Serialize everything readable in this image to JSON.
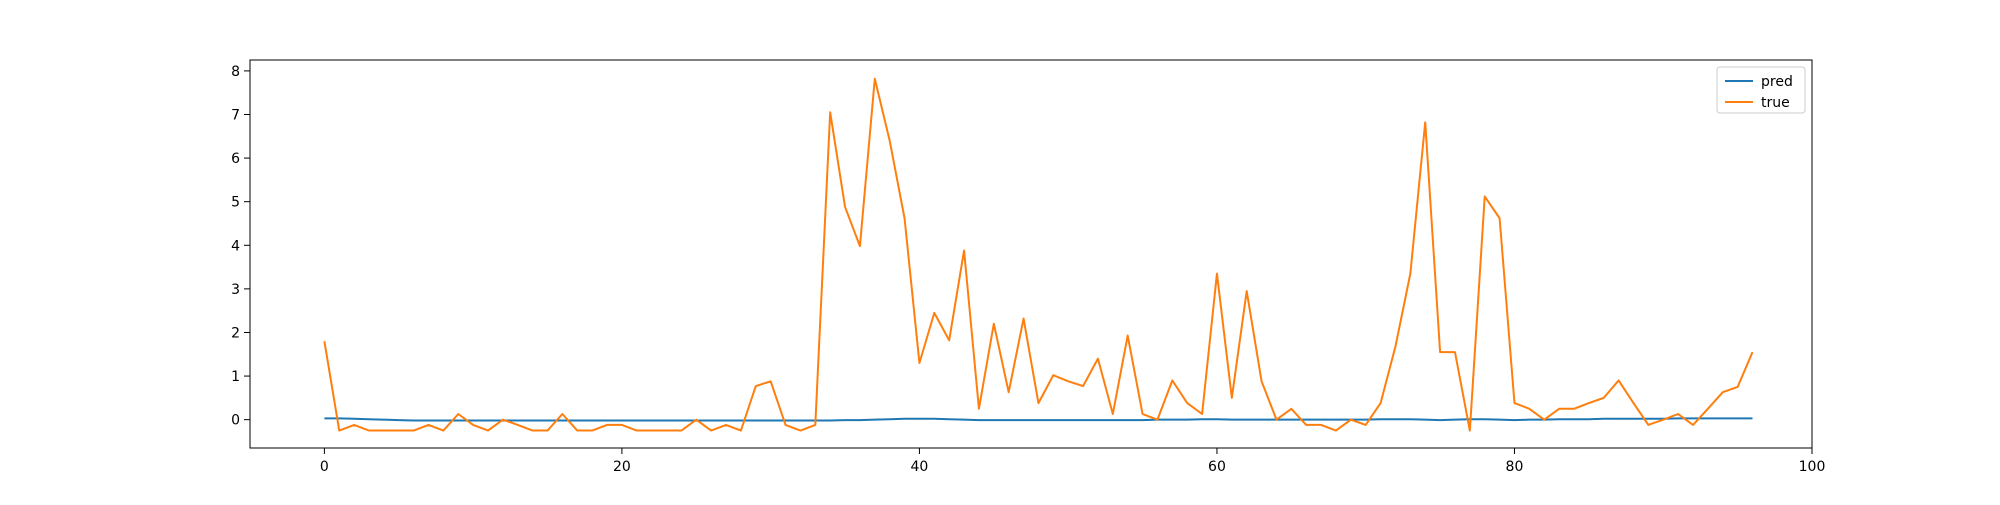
{
  "chart_data": {
    "type": "line",
    "title": "",
    "xlabel": "",
    "ylabel": "",
    "xlim": [
      -5,
      100
    ],
    "ylim": [
      -0.65,
      8.25
    ],
    "xticks": [
      0,
      20,
      40,
      60,
      80,
      100
    ],
    "yticks": [
      0,
      1,
      2,
      3,
      4,
      5,
      6,
      7,
      8
    ],
    "grid": false,
    "legend_position": "upper right",
    "series": [
      {
        "name": "pred",
        "color": "#1f77b4",
        "x": [
          0,
          1,
          2,
          3,
          4,
          5,
          6,
          7,
          8,
          9,
          10,
          11,
          12,
          13,
          14,
          15,
          16,
          17,
          18,
          19,
          20,
          21,
          22,
          23,
          24,
          25,
          26,
          27,
          28,
          29,
          30,
          31,
          32,
          33,
          34,
          35,
          36,
          37,
          38,
          39,
          40,
          41,
          42,
          43,
          44,
          45,
          46,
          47,
          48,
          49,
          50,
          51,
          52,
          53,
          54,
          55,
          56,
          57,
          58,
          59,
          60,
          61,
          62,
          63,
          64,
          65,
          66,
          67,
          68,
          69,
          70,
          71,
          72,
          73,
          74,
          75,
          76,
          77,
          78,
          79,
          80,
          81,
          82,
          83,
          84,
          85,
          86,
          87,
          88,
          89,
          90,
          91,
          92,
          93,
          94,
          95,
          96
        ],
        "values": [
          0.03,
          0.03,
          0.02,
          0.01,
          0.0,
          -0.01,
          -0.02,
          -0.02,
          -0.02,
          -0.02,
          -0.02,
          -0.02,
          -0.02,
          -0.02,
          -0.02,
          -0.02,
          -0.02,
          -0.02,
          -0.02,
          -0.02,
          -0.02,
          -0.02,
          -0.02,
          -0.02,
          -0.02,
          -0.02,
          -0.02,
          -0.02,
          -0.02,
          -0.02,
          -0.02,
          -0.02,
          -0.02,
          -0.02,
          -0.02,
          -0.01,
          -0.01,
          0.0,
          0.01,
          0.02,
          0.02,
          0.02,
          0.01,
          0.0,
          -0.01,
          -0.01,
          -0.01,
          -0.01,
          -0.01,
          -0.01,
          -0.01,
          -0.01,
          -0.01,
          -0.01,
          -0.01,
          -0.01,
          0.0,
          0.0,
          0.0,
          0.01,
          0.01,
          0.0,
          0.0,
          0.0,
          0.0,
          0.0,
          0.0,
          0.0,
          0.0,
          0.0,
          0.0,
          0.01,
          0.01,
          0.01,
          0.0,
          -0.01,
          0.0,
          0.01,
          0.01,
          0.0,
          -0.01,
          0.0,
          0.0,
          0.01,
          0.01,
          0.01,
          0.02,
          0.02,
          0.02,
          0.02,
          0.02,
          0.03,
          0.03,
          0.03,
          0.03,
          0.03,
          0.03
        ]
      },
      {
        "name": "true",
        "color": "#ff7f0e",
        "x": [
          0,
          1,
          2,
          3,
          4,
          5,
          6,
          7,
          8,
          9,
          10,
          11,
          12,
          13,
          14,
          15,
          16,
          17,
          18,
          19,
          20,
          21,
          22,
          23,
          24,
          25,
          26,
          27,
          28,
          29,
          30,
          31,
          32,
          33,
          34,
          35,
          36,
          37,
          38,
          39,
          40,
          41,
          42,
          43,
          44,
          45,
          46,
          47,
          48,
          49,
          50,
          51,
          52,
          53,
          54,
          55,
          56,
          57,
          58,
          59,
          60,
          61,
          62,
          63,
          64,
          65,
          66,
          67,
          68,
          69,
          70,
          71,
          72,
          73,
          74,
          75,
          76,
          77,
          78,
          79,
          80,
          81,
          82,
          83,
          84,
          85,
          86,
          87,
          88,
          89,
          90,
          91,
          92,
          93,
          94,
          95,
          96
        ],
        "values": [
          1.8,
          -0.25,
          -0.12,
          -0.25,
          -0.25,
          -0.25,
          -0.25,
          -0.12,
          -0.25,
          0.13,
          -0.12,
          -0.25,
          0.0,
          -0.12,
          -0.25,
          -0.25,
          0.13,
          -0.25,
          -0.25,
          -0.12,
          -0.12,
          -0.25,
          -0.25,
          -0.25,
          -0.25,
          0.0,
          -0.25,
          -0.12,
          -0.25,
          0.77,
          0.88,
          -0.12,
          -0.25,
          -0.12,
          7.05,
          4.88,
          3.98,
          7.82,
          6.4,
          4.62,
          1.3,
          2.45,
          1.82,
          3.88,
          0.25,
          2.2,
          0.63,
          2.32,
          0.38,
          1.02,
          0.88,
          0.77,
          1.4,
          0.13,
          1.93,
          0.13,
          0.0,
          0.9,
          0.38,
          0.13,
          3.35,
          0.5,
          2.95,
          0.88,
          0.0,
          0.25,
          -0.12,
          -0.12,
          -0.25,
          0.0,
          -0.12,
          0.38,
          1.68,
          3.35,
          6.82,
          1.55,
          1.55,
          -0.25,
          5.12,
          4.62,
          0.38,
          0.25,
          0.0,
          0.25,
          0.25,
          0.38,
          0.5,
          0.9,
          0.38,
          -0.12,
          0.0,
          0.13,
          -0.12,
          0.25,
          0.63,
          0.75,
          1.55
        ]
      }
    ]
  }
}
